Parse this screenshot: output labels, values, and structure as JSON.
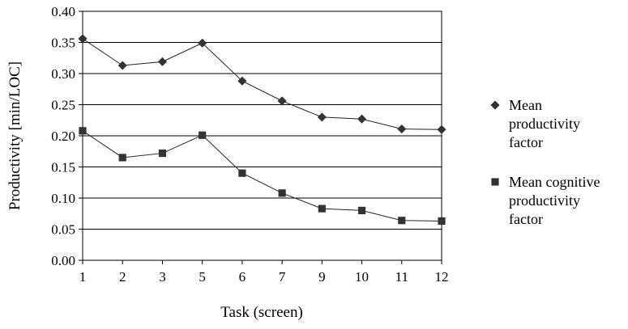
{
  "chart_data": {
    "type": "line",
    "xlabel": "Task (screen)",
    "ylabel": "Productivity [min/LOC]",
    "categories": [
      "1",
      "2",
      "3",
      "5",
      "6",
      "7",
      "9",
      "10",
      "11",
      "12"
    ],
    "ylim": [
      0,
      0.4
    ],
    "yticks": [
      "0.00",
      "0.05",
      "0.10",
      "0.15",
      "0.20",
      "0.25",
      "0.30",
      "0.35",
      "0.40"
    ],
    "grid": "horizontal",
    "legend_position": "right",
    "series": [
      {
        "name_lines": [
          "Mean",
          "productivity",
          "factor"
        ],
        "marker": "diamond",
        "color": "#333333",
        "values": [
          0.356,
          0.313,
          0.319,
          0.349,
          0.288,
          0.256,
          0.23,
          0.227,
          0.211,
          0.21
        ]
      },
      {
        "name_lines": [
          "Mean cognitive",
          "productivity",
          "factor"
        ],
        "marker": "square",
        "color": "#333333",
        "values": [
          0.208,
          0.165,
          0.172,
          0.201,
          0.14,
          0.108,
          0.083,
          0.08,
          0.064,
          0.063
        ]
      }
    ]
  }
}
